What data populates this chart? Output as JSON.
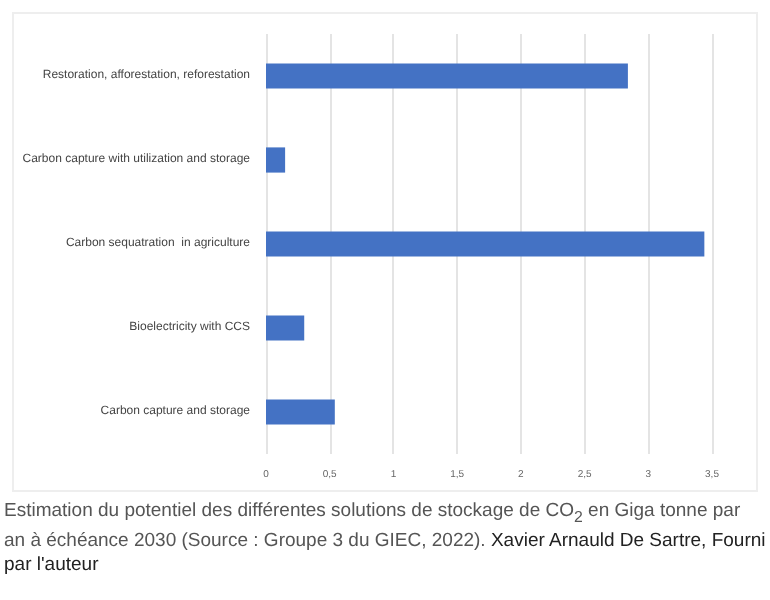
{
  "chart_data": {
    "type": "bar",
    "orientation": "horizontal",
    "categories": [
      "Restoration, afforestation, reforestation",
      "Carbon capture with utilization and storage",
      "Carbon sequatration  in agriculture",
      "Bioelectricity with CCS",
      "Carbon capture and storage"
    ],
    "values": [
      2.84,
      0.15,
      3.44,
      0.3,
      0.54
    ],
    "color": "#4472c4",
    "xlim": [
      0,
      3.5
    ],
    "xticks": [
      0,
      {
        "value": 0.5,
        "label": "0,5"
      },
      1,
      {
        "value": 1.5,
        "label": "1,5"
      },
      2,
      {
        "value": 2.5,
        "label": "2,5"
      },
      3,
      {
        "value": 3.5,
        "label": "3,5"
      }
    ],
    "grid": "x",
    "annotations": [
      "Estimation du potentiel des différentes solutions de stockage de CO$_{2}$ en Giga tonne par an à échéance 2030 (Source : Groupe 3 du GIEC, 2022).",
      "Xavier Arnauld De Sartre, Fourni par l'auteur"
    ]
  }
}
